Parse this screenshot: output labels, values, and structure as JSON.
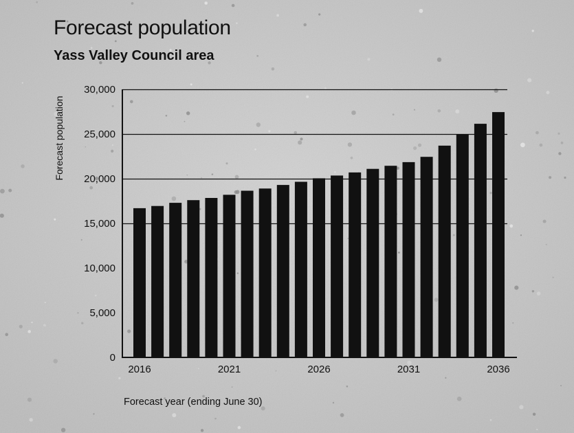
{
  "chart_data": {
    "type": "bar",
    "title": "Forecast population",
    "subtitle": "Yass Valley Council area",
    "xlabel": "Forecast year (ending June 30)",
    "ylabel": "Forecast population",
    "categories": [
      "2016",
      "2017",
      "2018",
      "2019",
      "2020",
      "2021",
      "2022",
      "2023",
      "2024",
      "2025",
      "2026",
      "2027",
      "2028",
      "2029",
      "2030",
      "2031",
      "2032",
      "2033",
      "2034",
      "2035",
      "2036"
    ],
    "x_tick_labels": [
      "2016",
      "2021",
      "2026",
      "2031",
      "2036"
    ],
    "y_tick_labels": [
      "0",
      "5,000",
      "10,000",
      "15,000",
      "20,000",
      "25,000",
      "30,000"
    ],
    "y_ticks": [
      0,
      5000,
      10000,
      15000,
      20000,
      25000,
      30000
    ],
    "values": [
      16700,
      16950,
      17300,
      17600,
      17850,
      18200,
      18650,
      18900,
      19300,
      19650,
      20050,
      20350,
      20700,
      21100,
      21450,
      21850,
      22450,
      23700,
      24950,
      26150,
      27450
    ],
    "ylim": [
      0,
      30000
    ],
    "grid": true,
    "gridlines_at": [
      15000,
      20000,
      25000,
      30000
    ],
    "legend": "none",
    "colors": {
      "bars": "#111111",
      "background": "#c9c9c9",
      "text": "#111111"
    }
  }
}
